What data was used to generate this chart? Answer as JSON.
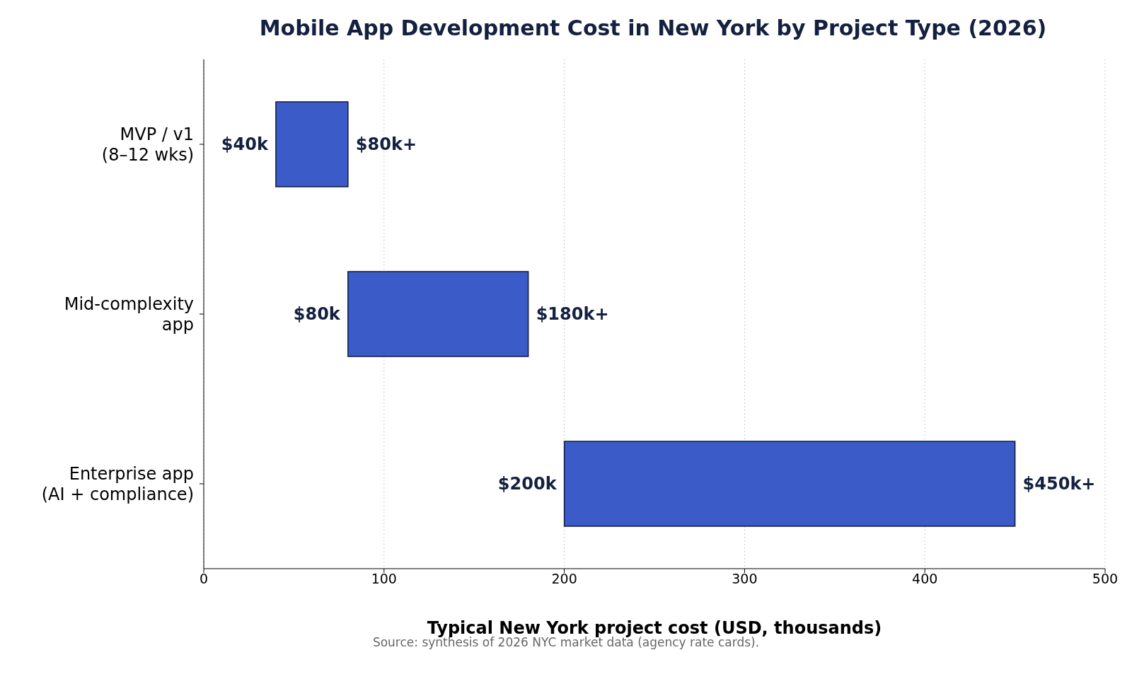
{
  "chart_data": {
    "type": "bar",
    "orientation": "horizontal",
    "title": "Mobile App Development Cost in New York by Project Type (2026)",
    "xlabel": "Typical New York project cost (USD, thousands)",
    "categories": [
      "MVP / v1\n(8–12 wks)",
      "Mid-complexity\napp",
      "Enterprise app\n(AI + compliance)"
    ],
    "base": [
      40,
      80,
      200
    ],
    "values": [
      40,
      100,
      250
    ],
    "color": "#3a5bc8",
    "xlim": [
      0,
      500
    ],
    "xticks": [
      0,
      100,
      200,
      300,
      400,
      500
    ],
    "grid": "x",
    "annotations": [
      {
        "text": "$40k",
        "x": 40,
        "y": "MVP / v1\n(8–12 wks)"
      },
      {
        "text": "$80k+",
        "x": 80,
        "y": "MVP / v1\n(8–12 wks)"
      },
      {
        "text": "$80k",
        "x": 80,
        "y": "Mid-complexity\napp"
      },
      {
        "text": "$180k+",
        "x": 180,
        "y": "Mid-complexity\napp"
      },
      {
        "text": "$200k",
        "x": 200,
        "y": "Enterprise app\n(AI + compliance)"
      },
      {
        "text": "$450k+",
        "x": 450,
        "y": "Enterprise app\n(AI + compliance)"
      },
      "Source: synthesis of 2026 NYC market data (agency rate cards)."
    ]
  }
}
